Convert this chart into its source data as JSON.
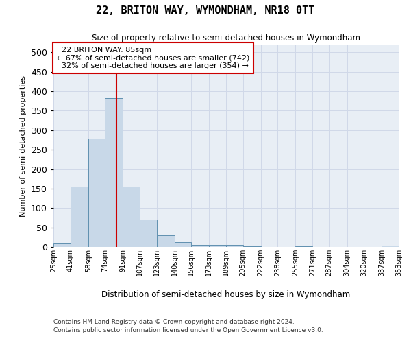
{
  "title": "22, BRITON WAY, WYMONDHAM, NR18 0TT",
  "subtitle": "Size of property relative to semi-detached houses in Wymondham",
  "xlabel": "Distribution of semi-detached houses by size in Wymondham",
  "ylabel": "Number of semi-detached properties",
  "bar_color": "#c8d8e8",
  "bar_edge_color": "#6090b0",
  "bin_edges": [
    25,
    41,
    58,
    74,
    91,
    107,
    123,
    140,
    156,
    173,
    189,
    205,
    222,
    238,
    255,
    271,
    287,
    304,
    320,
    337,
    353
  ],
  "bin_labels": [
    "25sqm",
    "41sqm",
    "58sqm",
    "74sqm",
    "91sqm",
    "107sqm",
    "123sqm",
    "140sqm",
    "156sqm",
    "173sqm",
    "189sqm",
    "205sqm",
    "222sqm",
    "238sqm",
    "255sqm",
    "271sqm",
    "287sqm",
    "304sqm",
    "320sqm",
    "337sqm",
    "353sqm"
  ],
  "bar_heights": [
    10,
    155,
    278,
    383,
    155,
    70,
    30,
    12,
    5,
    5,
    6,
    1,
    0,
    0,
    1,
    0,
    0,
    0,
    0,
    3
  ],
  "ylim": [
    0,
    520
  ],
  "yticks": [
    0,
    50,
    100,
    150,
    200,
    250,
    300,
    350,
    400,
    450,
    500
  ],
  "property_size": 85,
  "property_label": "22 BRITON WAY: 85sqm",
  "pct_smaller": 67,
  "n_smaller": 742,
  "pct_larger": 32,
  "n_larger": 354,
  "annotation_box_color": "#ffffff",
  "annotation_box_edge": "#cc0000",
  "vline_color": "#cc0000",
  "grid_color": "#d0d8e8",
  "bg_color": "#e8eef5",
  "fig_bg_color": "#ffffff",
  "footer1": "Contains HM Land Registry data © Crown copyright and database right 2024.",
  "footer2": "Contains public sector information licensed under the Open Government Licence v3.0."
}
